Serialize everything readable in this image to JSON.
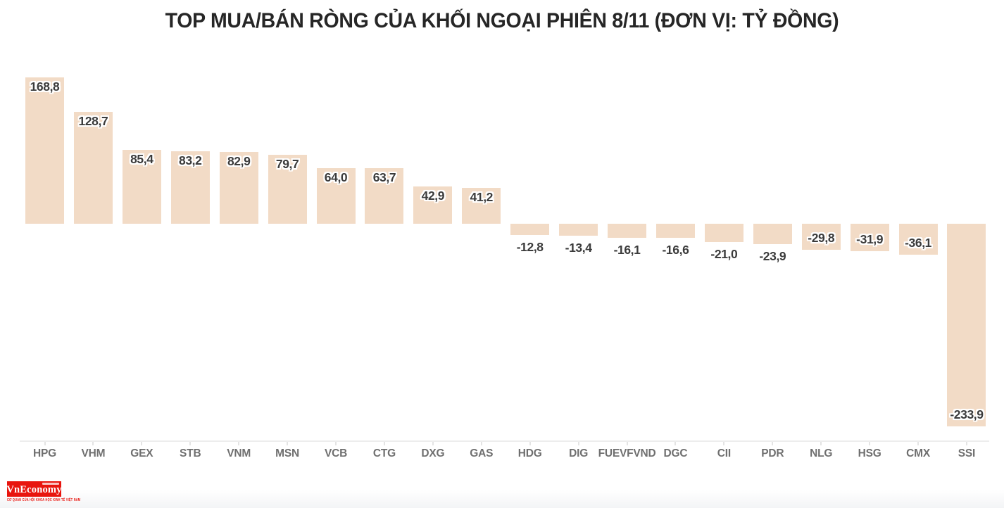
{
  "title": "TOP MUA/BÁN RÒNG CỦA KHỐI NGOẠI PHIÊN 8/11 (ĐƠN VỊ: TỶ ĐỒNG)",
  "branding": {
    "logo_text": "VnEconomy",
    "tagline": "CƠ QUAN CỦA HỘI KHOA HỌC KINH TẾ VIỆT NAM"
  },
  "colors": {
    "bar": "#f2dbc6",
    "value_label": "#3b3b3b",
    "tick_label": "#6f6f6f",
    "title": "#262626",
    "axis_line": "#ededed",
    "logo_bg": "#e8150e"
  },
  "chart_data": {
    "type": "bar",
    "title": "TOP MUA/BÁN RÒNG CỦA KHỐI NGOẠI PHIÊN 8/11 (ĐƠN VỊ: TỶ ĐỒNG)",
    "unit": "tỷ đồng",
    "categories": [
      "HPG",
      "VHM",
      "GEX",
      "STB",
      "VNM",
      "MSN",
      "VCB",
      "CTG",
      "DXG",
      "GAS",
      "HDG",
      "DIG",
      "FUEVFVND",
      "DGC",
      "CII",
      "PDR",
      "NLG",
      "HSG",
      "CMX",
      "SSI"
    ],
    "values": [
      168.8,
      128.7,
      85.4,
      83.2,
      82.9,
      79.7,
      64.0,
      63.7,
      42.9,
      41.2,
      -12.8,
      -13.4,
      -16.1,
      -16.6,
      -21.0,
      -23.9,
      -29.8,
      -31.9,
      -36.1,
      -233.9
    ],
    "value_labels": [
      "168,8",
      "128,7",
      "85,4",
      "83,2",
      "82,9",
      "79,7",
      "64,0",
      "63,7",
      "42,9",
      "41,2",
      "-12,8",
      "-13,4",
      "-16,1",
      "-16,6",
      "-21,0",
      "-23,9",
      "-29,8",
      "-31,9",
      "-36,1",
      "-233,9"
    ],
    "label_placements": [
      "inside",
      "inside",
      "inside",
      "inside",
      "inside",
      "inside",
      "inside",
      "inside",
      "inside",
      "inside",
      "outside",
      "outside",
      "outside",
      "outside",
      "outside",
      "outside",
      "inside",
      "inside",
      "inside",
      "inside"
    ],
    "xlabel": "",
    "ylabel": "",
    "ylim": [
      -240,
      175
    ],
    "grid": false,
    "legend": false,
    "bar_color": "#f2dbc6"
  }
}
